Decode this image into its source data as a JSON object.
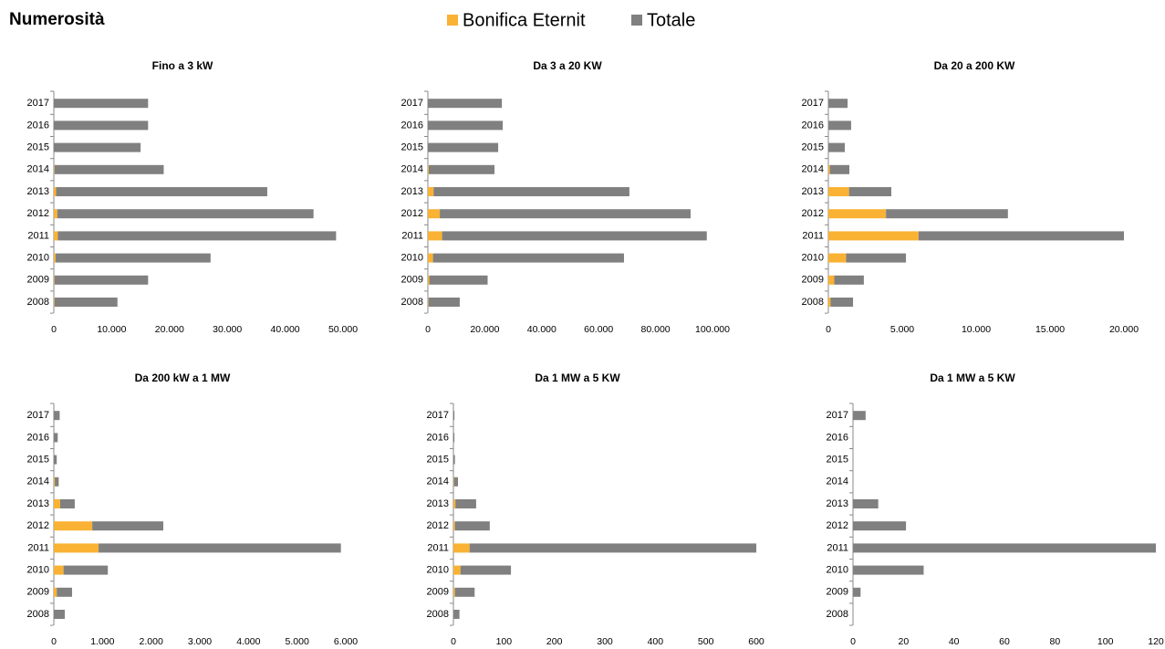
{
  "title": "Numerosità",
  "chart_data": [
    {
      "type": "bar",
      "orientation": "horizontal",
      "stacked": true,
      "title": "Fino a 3 kW",
      "categories": [
        "2008",
        "2009",
        "2010",
        "2011",
        "2012",
        "2013",
        "2014",
        "2015",
        "2016",
        "2017"
      ],
      "series": [
        {
          "name": "Bonifica Eternit",
          "color": "#f9b233",
          "values": [
            100,
            100,
            300,
            700,
            600,
            400,
            100,
            0,
            0,
            0
          ]
        },
        {
          "name": "Totale",
          "color": "#808080",
          "values": [
            10900,
            16200,
            26800,
            48100,
            44300,
            36500,
            18900,
            15000,
            16300,
            16300
          ]
        }
      ],
      "xlim": [
        0,
        50000
      ],
      "xticks": [
        0,
        {
          "value": 10000,
          "label": "10.000"
        },
        {
          "value": 20000,
          "label": "20.000"
        },
        {
          "value": 30000,
          "label": "30.000"
        },
        {
          "value": 40000,
          "label": "40.000"
        },
        {
          "value": 50000,
          "label": "50.000"
        }
      ]
    },
    {
      "type": "bar",
      "orientation": "horizontal",
      "stacked": true,
      "title": "Da 3 a 20 KW",
      "categories": [
        "2008",
        "2009",
        "2010",
        "2011",
        "2012",
        "2013",
        "2014",
        "2015",
        "2016",
        "2017"
      ],
      "series": [
        {
          "name": "Bonifica Eternit",
          "color": "#f9b233",
          "values": [
            200,
            500,
            1800,
            5000,
            4200,
            2000,
            300,
            0,
            0,
            0
          ]
        },
        {
          "name": "Totale",
          "color": "#808080",
          "values": [
            11000,
            20500,
            67100,
            93000,
            88100,
            68800,
            23100,
            24700,
            26300,
            26000
          ]
        }
      ],
      "xlim": [
        0,
        100000
      ],
      "xticks": [
        0,
        {
          "value": 20000,
          "label": "20.000"
        },
        {
          "value": 40000,
          "label": "40.000"
        },
        {
          "value": 60000,
          "label": "60.000"
        },
        {
          "value": 80000,
          "label": "80.000"
        },
        {
          "value": 100000,
          "label": "100.000"
        }
      ]
    },
    {
      "type": "bar",
      "orientation": "horizontal",
      "stacked": true,
      "title": "Da 20 a 200 KW",
      "categories": [
        "2008",
        "2009",
        "2010",
        "2011",
        "2012",
        "2013",
        "2014",
        "2015",
        "2016",
        "2017"
      ],
      "series": [
        {
          "name": "Bonifica Eternit",
          "color": "#f9b233",
          "values": [
            150,
            400,
            1200,
            6100,
            3900,
            1400,
            100,
            0,
            0,
            0
          ]
        },
        {
          "name": "Totale",
          "color": "#808080",
          "values": [
            1520,
            2000,
            4050,
            13900,
            8250,
            2860,
            1320,
            1110,
            1540,
            1300
          ]
        }
      ],
      "xlim": [
        0,
        20000
      ],
      "xticks": [
        0,
        {
          "value": 5000,
          "label": "5.000"
        },
        {
          "value": 10000,
          "label": "10.000"
        },
        {
          "value": 15000,
          "label": "15.000"
        },
        {
          "value": 20000,
          "label": "20.000"
        }
      ]
    },
    {
      "type": "bar",
      "orientation": "horizontal",
      "stacked": true,
      "title": "Da 200 kW a 1 MW",
      "categories": [
        "2008",
        "2009",
        "2010",
        "2011",
        "2012",
        "2013",
        "2014",
        "2015",
        "2016",
        "2017"
      ],
      "series": [
        {
          "name": "Bonifica Eternit",
          "color": "#f9b233",
          "values": [
            0,
            60,
            200,
            920,
            790,
            130,
            20,
            0,
            0,
            0
          ]
        },
        {
          "name": "Totale",
          "color": "#808080",
          "values": [
            225,
            315,
            910,
            4980,
            1460,
            300,
            80,
            60,
            80,
            120
          ]
        }
      ],
      "xlim": [
        0,
        6000
      ],
      "xticks": [
        0,
        {
          "value": 1000,
          "label": "1.000"
        },
        {
          "value": 2000,
          "label": "2.000"
        },
        {
          "value": 3000,
          "label": "3.000"
        },
        {
          "value": 4000,
          "label": "4.000"
        },
        {
          "value": 5000,
          "label": "5.000"
        },
        {
          "value": 6000,
          "label": "6.000"
        }
      ]
    },
    {
      "type": "bar",
      "orientation": "horizontal",
      "stacked": true,
      "title": "Da 1 MW a 5 KW",
      "categories": [
        "2008",
        "2009",
        "2010",
        "2011",
        "2012",
        "2013",
        "2014",
        "2015",
        "2016",
        "2017"
      ],
      "series": [
        {
          "name": "Bonifica Eternit",
          "color": "#f9b233",
          "values": [
            0,
            3,
            14,
            32,
            3,
            4,
            1,
            0,
            0,
            0
          ]
        },
        {
          "name": "Totale",
          "color": "#808080",
          "values": [
            12,
            39,
            100,
            568,
            69,
            41,
            8,
            3,
            2,
            2
          ]
        }
      ],
      "xlim": [
        0,
        600
      ],
      "xticks": [
        0,
        100,
        200,
        300,
        400,
        500,
        600
      ]
    },
    {
      "type": "bar",
      "orientation": "horizontal",
      "stacked": true,
      "title": "Da 1 MW a 5 KW",
      "categories": [
        "2008",
        "2009",
        "2010",
        "2011",
        "2012",
        "2013",
        "2014",
        "2015",
        "2016",
        "2017"
      ],
      "series": [
        {
          "name": "Bonifica Eternit",
          "color": "#f9b233",
          "values": [
            0,
            0,
            0,
            0,
            0,
            0,
            0,
            0,
            0,
            0
          ]
        },
        {
          "name": "Totale",
          "color": "#808080",
          "values": [
            0,
            3,
            28,
            120,
            21,
            10,
            0,
            0,
            0,
            5
          ]
        }
      ],
      "xlim": [
        0,
        120
      ],
      "xticks": [
        0,
        20,
        40,
        60,
        80,
        100,
        120
      ]
    }
  ]
}
